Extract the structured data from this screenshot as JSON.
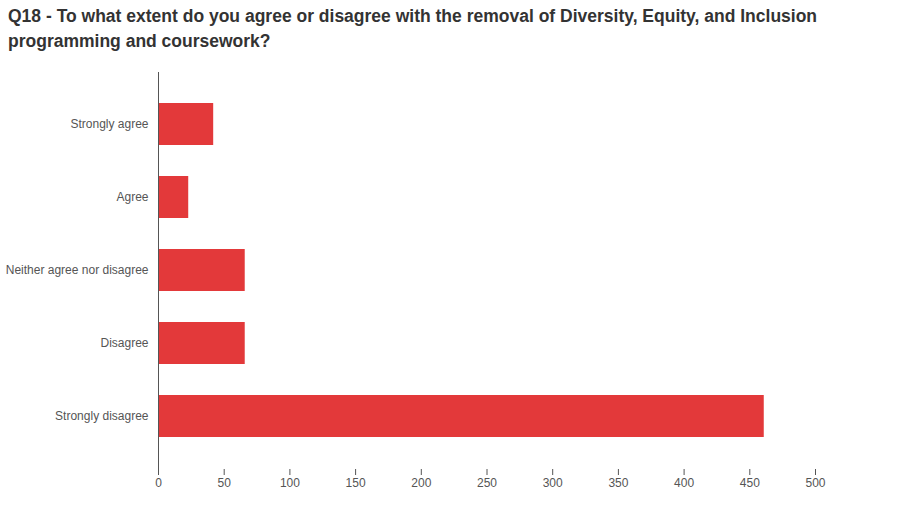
{
  "chart_data": {
    "type": "bar",
    "orientation": "horizontal",
    "title": "Q18 - To what extent do you agree or disagree with the removal of Diversity, Equity, and Inclusion programming and coursework?",
    "categories": [
      "Strongly agree",
      "Agree",
      "Neither agree nor disagree",
      "Disagree",
      "Strongly disagree"
    ],
    "values": [
      42,
      23,
      66,
      66,
      461
    ],
    "color": "#e3393a",
    "xlim": [
      0,
      500
    ],
    "xticks": [
      0,
      50,
      100,
      150,
      200,
      250,
      300,
      350,
      400,
      450,
      500
    ],
    "grid": false
  }
}
